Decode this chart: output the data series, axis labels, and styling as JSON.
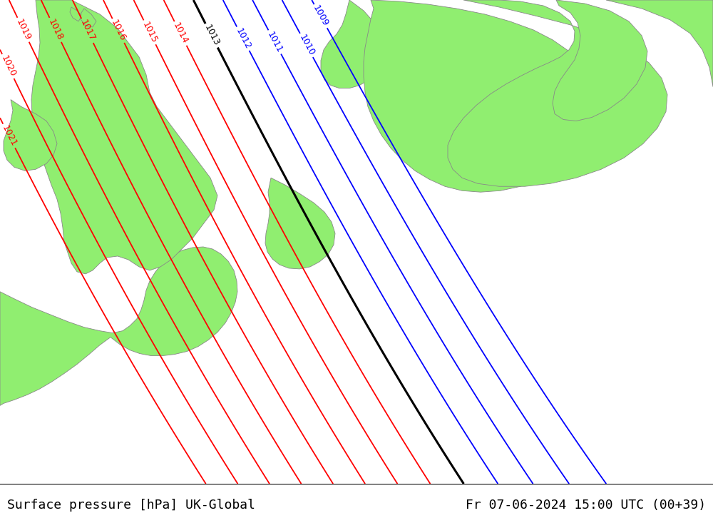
{
  "title_left": "Surface pressure [hPa] UK-Global",
  "title_right": "Fr 07-06-2024 15:00 UTC (00+39)",
  "title_fontsize": 13,
  "title_color": "#000000",
  "sea_color": "#cccccc",
  "land_color": "#90ee70",
  "land_edge_color": "#888888",
  "contour_color_blue": "#0000ff",
  "contour_color_red": "#ff0000",
  "contour_color_black": "#000000",
  "label_fontsize": 9,
  "figsize": [
    10.0,
    7.33
  ],
  "dpi": 100,
  "blue_levels": [
    1009,
    1010,
    1011,
    1012
  ],
  "black_levels": [
    1013
  ],
  "red_levels": [
    1014,
    1015,
    1016,
    1017,
    1018,
    1019,
    1020,
    1021
  ]
}
